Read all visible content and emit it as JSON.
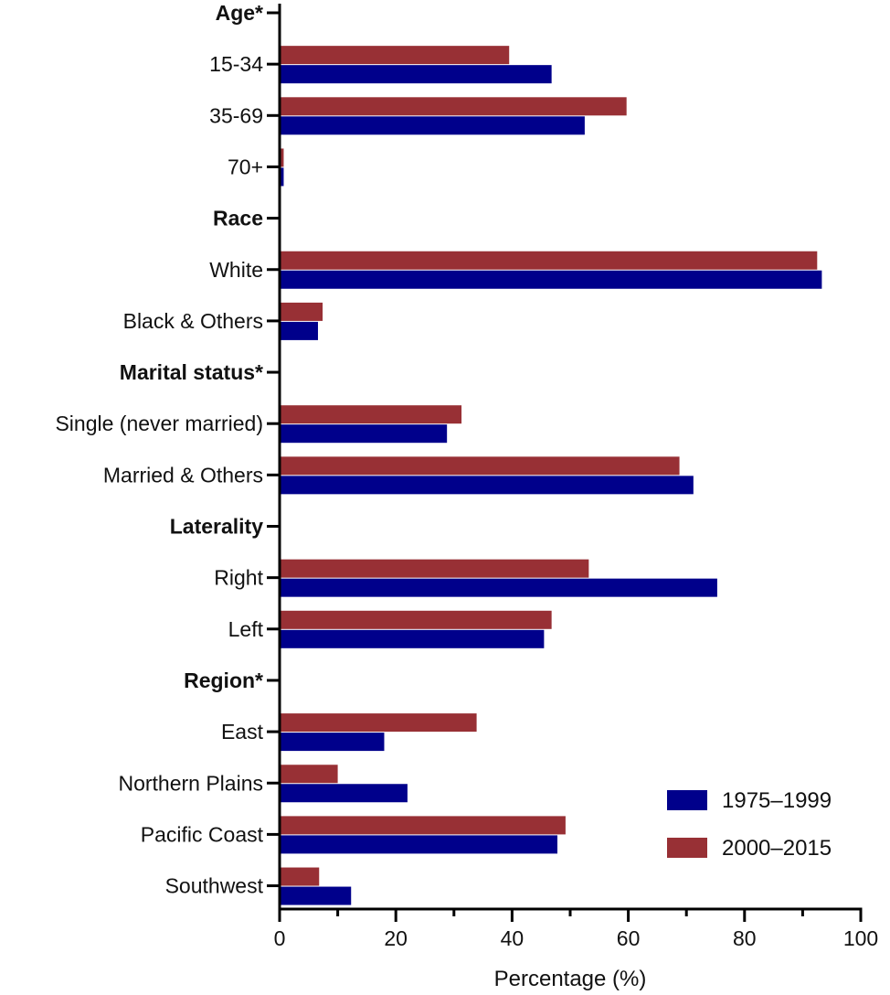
{
  "chart_data": {
    "type": "bar",
    "orientation": "horizontal",
    "categories": [
      "Age*",
      "15-34",
      "35-69",
      "70+",
      "Race",
      "White",
      "Black & Others",
      "Marital status*",
      "Single (never married)",
      "Married & Others",
      "Laterality",
      "Right",
      "Left",
      "Region*",
      "East",
      "Northern Plains",
      "Pacific Coast",
      "Southwest"
    ],
    "header_categories": [
      "Age*",
      "Race",
      "Marital status*",
      "Laterality",
      "Region*"
    ],
    "series": [
      {
        "name": "1975–1999",
        "color": "#00008B",
        "values": [
          null,
          46.8,
          52.5,
          0.7,
          null,
          93.3,
          6.6,
          null,
          28.8,
          71.2,
          null,
          75.3,
          45.5,
          null,
          18.0,
          22.0,
          47.8,
          12.3
        ]
      },
      {
        "name": "2000–2015",
        "color": "#983035",
        "values": [
          null,
          39.5,
          59.7,
          0.7,
          null,
          92.5,
          7.4,
          null,
          31.3,
          68.8,
          null,
          53.2,
          46.8,
          null,
          33.9,
          10.0,
          49.2,
          6.8
        ]
      }
    ],
    "xlabel": "Percentage (%)",
    "xlim": [
      0,
      100
    ],
    "xticks": [
      "0",
      "20",
      "40",
      "60",
      "80",
      "100"
    ],
    "grid": false,
    "legend_position": "bottom-right"
  }
}
